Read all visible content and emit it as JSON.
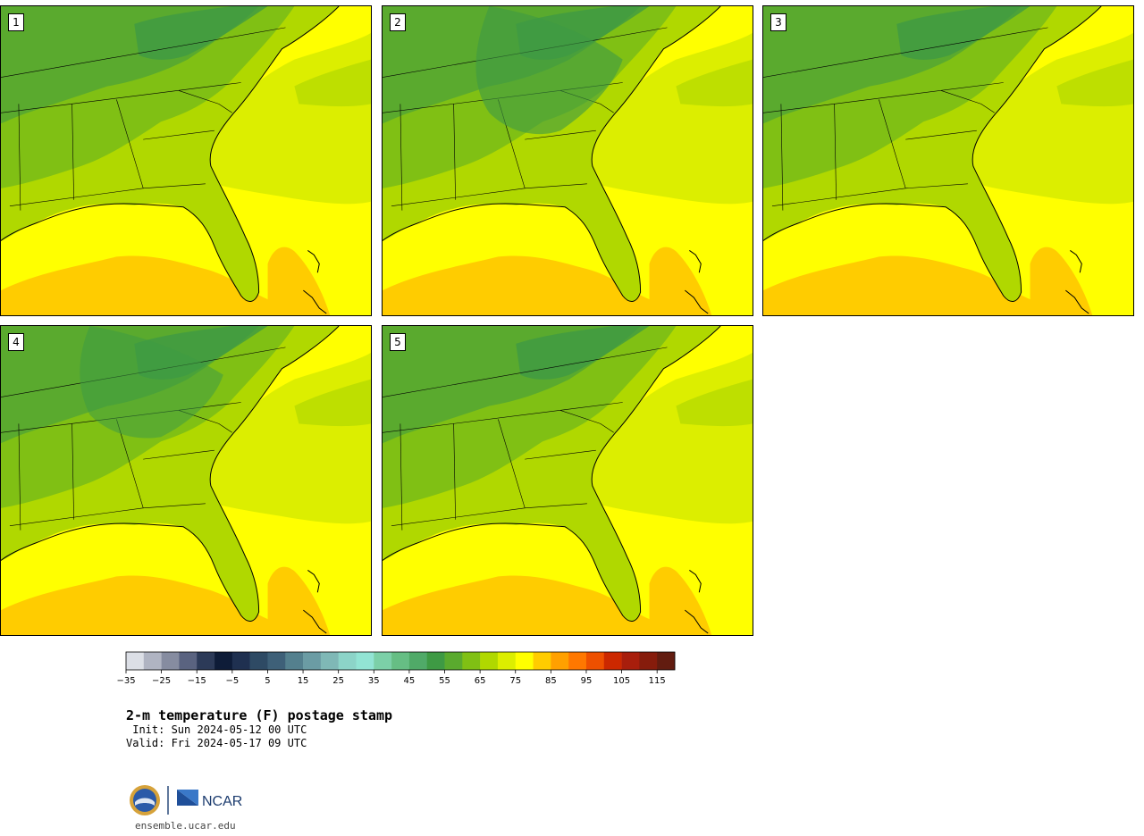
{
  "title": "2-m temperature (F) postage stamp",
  "init": " Init: Sun 2024-05-12 00 UTC",
  "valid": "Valid: Fri 2024-05-17 09 UTC",
  "website": "ensemble.ucar.edu",
  "logos": {
    "left_icon": "nsf-logo-icon",
    "right_text": "NCAR"
  },
  "panels": [
    {
      "label": "1"
    },
    {
      "label": "2"
    },
    {
      "label": "3"
    },
    {
      "label": "4"
    },
    {
      "label": "5"
    }
  ],
  "colorbar": {
    "ticks": [
      "−35",
      "−25",
      "−15",
      "−5",
      "5",
      "15",
      "25",
      "35",
      "45",
      "55",
      "65",
      "75",
      "85",
      "95",
      "105",
      "115"
    ],
    "colors": [
      "#dcdfe6",
      "#b0b4c2",
      "#868ca0",
      "#5a6380",
      "#2c3a58",
      "#0e1c38",
      "#1f3050",
      "#2e4a64",
      "#3e6078",
      "#54808e",
      "#6b9ca4",
      "#7fb8b6",
      "#8cd4c8",
      "#92e4d4",
      "#7cd0a8",
      "#66be84",
      "#50aa68",
      "#3e9a44",
      "#5aaa2e",
      "#80c014",
      "#b0d800",
      "#dcee00",
      "#ffff00",
      "#ffcc00",
      "#ffa000",
      "#ff7800",
      "#ee5000",
      "#cc2800",
      "#a81e0c",
      "#861c0c",
      "#621c10"
    ]
  },
  "colors": {
    "sea_warm": "#ffcc00",
    "sea": "#ffff00",
    "ocean_lime": "#dcee00",
    "land_light": "#b0d800",
    "land_mid": "#80c014",
    "land_dark": "#5aaa2e",
    "land_darkest": "#3e9a44"
  }
}
